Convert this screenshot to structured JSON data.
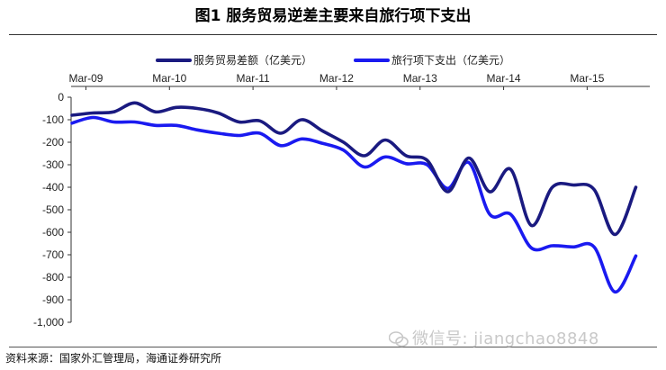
{
  "title": "图1  服务贸易逆差主要来自旅行项下支出",
  "source": "资料来源：国家外汇管理局，海通证券研究所",
  "watermark": "微信号: jiangchao8848",
  "chart_data": {
    "type": "line",
    "title": "图1  服务贸易逆差主要来自旅行项下支出",
    "xlabel": "",
    "ylabel": "",
    "x_ticks": [
      "Mar-09",
      "Mar-10",
      "Mar-11",
      "Mar-12",
      "Mar-13",
      "Mar-14",
      "Mar-15"
    ],
    "ylim": [
      -1000,
      0
    ],
    "y_ticks": [
      0,
      -100,
      -200,
      -300,
      -400,
      -500,
      -600,
      -700,
      -800,
      -900,
      -1000
    ],
    "y_tick_labels": [
      "0",
      "-100",
      "-200",
      "-300",
      "-400",
      "-500",
      "-600",
      "-700",
      "-800",
      "-900",
      "-1,000"
    ],
    "legend_position": "top",
    "grid": false,
    "x": [
      "2009-01",
      "2009-04",
      "2009-07",
      "2009-10",
      "2010-01",
      "2010-04",
      "2010-07",
      "2010-10",
      "2011-01",
      "2011-04",
      "2011-07",
      "2011-10",
      "2012-01",
      "2012-04",
      "2012-07",
      "2012-10",
      "2013-01",
      "2013-04",
      "2013-07",
      "2013-10",
      "2014-01",
      "2014-04",
      "2014-07",
      "2014-10",
      "2015-01",
      "2015-04",
      "2015-07",
      "2015-10"
    ],
    "series": [
      {
        "name": "服务贸易差额（亿美元）",
        "color": "#1a1a80",
        "values": [
          -80,
          -70,
          -65,
          -25,
          -65,
          -45,
          -50,
          -70,
          -110,
          -105,
          -160,
          -100,
          -150,
          -200,
          -260,
          -190,
          -260,
          -280,
          -420,
          -270,
          -420,
          -320,
          -570,
          -400,
          -390,
          -410,
          -610,
          -400
        ]
      },
      {
        "name": "旅行项下支出（亿美元）",
        "color": "#1a1af0",
        "values": [
          -115,
          -90,
          -110,
          -110,
          -125,
          -125,
          -145,
          -160,
          -170,
          -160,
          -215,
          -185,
          -205,
          -235,
          -310,
          -265,
          -295,
          -300,
          -405,
          -290,
          -520,
          -520,
          -670,
          -660,
          -665,
          -665,
          -865,
          -705
        ]
      }
    ]
  }
}
